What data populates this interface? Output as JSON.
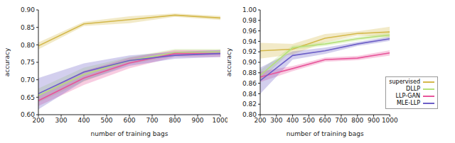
{
  "chart_data": [
    {
      "type": "line",
      "x_label": "number of training bags",
      "y_label": "accuracy",
      "x": [
        200,
        400,
        600,
        800,
        1000
      ],
      "xlim": [
        200,
        1000
      ],
      "xticks": [
        200,
        300,
        400,
        500,
        600,
        700,
        800,
        900,
        1000
      ],
      "ylim": [
        0.6,
        0.9
      ],
      "yticks": [
        {
          "value": 0.6,
          "label": "0.60"
        },
        0.65,
        {
          "value": 0.7,
          "label": "0.70"
        },
        0.75,
        {
          "value": 0.8,
          "label": "0.80"
        },
        0.85,
        {
          "value": 0.9,
          "label": "0.90"
        }
      ],
      "grid": false,
      "series": [
        {
          "name": "supervised",
          "color": "#d4b84a",
          "values": [
            0.797,
            0.86,
            0.872,
            0.885,
            0.877
          ],
          "errors": [
            0.01,
            0.006,
            0.01,
            0.005,
            0.006
          ]
        },
        {
          "name": "DLLP",
          "color": "#b5e07a",
          "values": [
            0.655,
            0.715,
            0.755,
            0.778,
            0.78
          ],
          "errors": [
            0.02,
            0.02,
            0.01,
            0.01,
            0.008
          ]
        },
        {
          "name": "LLP-GAN",
          "color": "#e8559a",
          "values": [
            0.64,
            0.705,
            0.748,
            0.775,
            0.775
          ],
          "errors": [
            0.015,
            0.02,
            0.015,
            0.01,
            0.01
          ]
        },
        {
          "name": "MLE-LLP",
          "color": "#6c5fc7",
          "values": [
            0.66,
            0.722,
            0.755,
            0.77,
            0.775
          ],
          "errors": [
            0.045,
            0.025,
            0.015,
            0.01,
            0.01
          ]
        }
      ]
    },
    {
      "type": "line",
      "x_label": "number of training bags",
      "y_label": "accuracy",
      "x": [
        200,
        400,
        600,
        800,
        1000
      ],
      "xlim": [
        200,
        1000
      ],
      "xticks": [
        200,
        300,
        400,
        500,
        600,
        700,
        800,
        900,
        1000
      ],
      "ylim": [
        0.8,
        1.0
      ],
      "yticks": [
        {
          "value": 0.8,
          "label": "0.80"
        },
        0.82,
        0.84,
        0.86,
        0.88,
        {
          "value": 0.9,
          "label": "0.90"
        },
        0.92,
        0.94,
        0.96,
        0.98,
        {
          "value": 1.0,
          "label": "1.00"
        }
      ],
      "grid": false,
      "legend": "lower right",
      "series": [
        {
          "name": "supervised",
          "color": "#d4b84a",
          "values": [
            0.922,
            0.925,
            0.946,
            0.955,
            0.958
          ],
          "errors": [
            0.015,
            0.01,
            0.008,
            0.004,
            0.01
          ]
        },
        {
          "name": "DLLP",
          "color": "#b5e07a",
          "values": [
            0.875,
            0.928,
            0.935,
            0.945,
            0.952
          ],
          "errors": [
            0.01,
            0.004,
            0.004,
            0.004,
            0.004
          ]
        },
        {
          "name": "LLP-GAN",
          "color": "#e8559a",
          "values": [
            0.872,
            0.888,
            0.905,
            0.908,
            0.918
          ],
          "errors": [
            0.01,
            0.005,
            0.004,
            0.004,
            0.005
          ]
        },
        {
          "name": "MLE-LLP",
          "color": "#6c5fc7",
          "values": [
            0.865,
            0.913,
            0.922,
            0.935,
            0.945
          ],
          "errors": [
            0.025,
            0.008,
            0.006,
            0.004,
            0.004
          ]
        }
      ]
    }
  ]
}
